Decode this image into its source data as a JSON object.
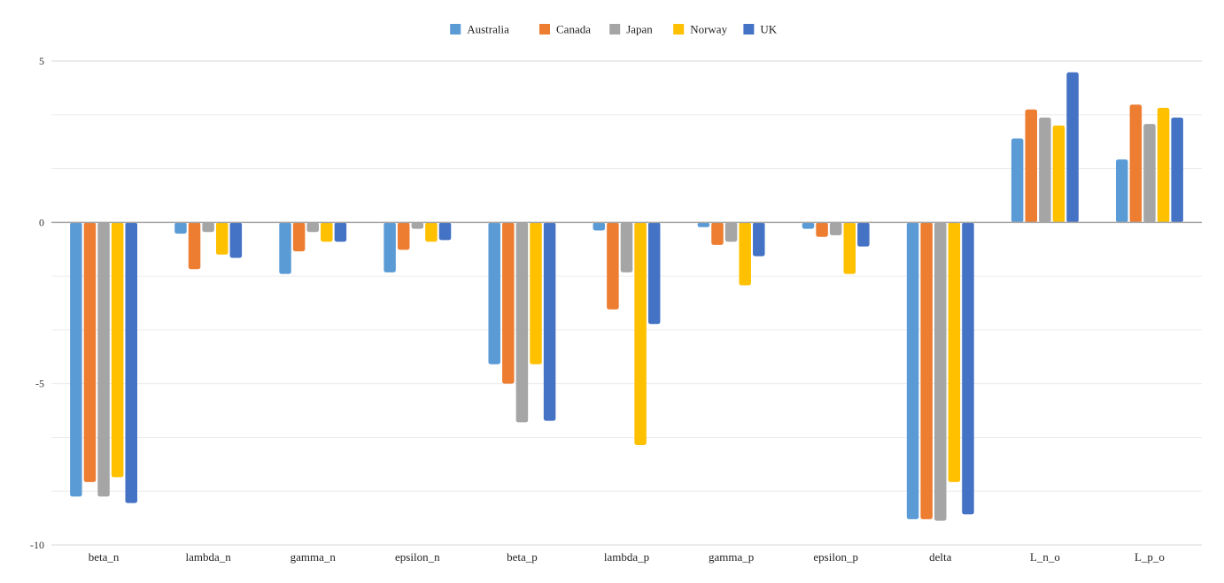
{
  "chart_data": {
    "type": "bar",
    "categories": [
      "beta_n",
      "lambda_n",
      "gamma_n",
      "epsilon_n",
      "beta_p",
      "lambda_p",
      "gamma_p",
      "epsilon_p",
      "delta",
      "L_n_o",
      "L_p_o"
    ],
    "series": [
      {
        "name": "Australia",
        "color": "#5b9bd5",
        "values": [
          -8.5,
          -0.35,
          -1.6,
          -1.55,
          -4.4,
          -0.25,
          -0.15,
          -0.2,
          -9.2,
          2.6,
          1.95
        ]
      },
      {
        "name": "Canada",
        "color": "#ed7d31",
        "values": [
          -8.05,
          -1.45,
          -0.9,
          -0.85,
          -5.0,
          -2.7,
          -0.7,
          -0.45,
          -9.2,
          3.5,
          3.65
        ]
      },
      {
        "name": "Japan",
        "color": "#a5a5a5",
        "values": [
          -8.5,
          -0.3,
          -0.3,
          -0.2,
          -6.2,
          -1.55,
          -0.6,
          -0.4,
          -9.25,
          3.25,
          3.05
        ]
      },
      {
        "name": "Norway",
        "color": "#ffc000",
        "values": [
          -7.9,
          -1.0,
          -0.6,
          -0.6,
          -4.4,
          -6.9,
          -1.95,
          -1.6,
          -8.05,
          3.0,
          3.55
        ]
      },
      {
        "name": "UK",
        "color": "#4472c4",
        "values": [
          -8.7,
          -1.1,
          -0.6,
          -0.55,
          -6.15,
          -3.15,
          -1.05,
          -0.75,
          -9.05,
          4.65,
          3.25
        ]
      }
    ],
    "yticks": [
      5,
      0,
      -5,
      -10
    ],
    "ylim": [
      -10,
      5
    ],
    "gridlines": [
      5,
      3.333,
      1.667,
      0,
      -1.667,
      -3.333,
      -5,
      -6.667,
      -8.333,
      -10
    ],
    "legend_position": "top",
    "grid": true
  }
}
